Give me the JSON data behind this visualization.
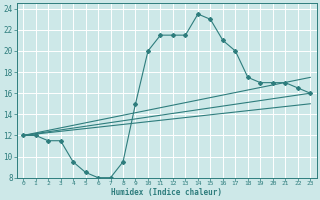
{
  "xlabel": "Humidex (Indice chaleur)",
  "background_color": "#cde8e8",
  "grid_color": "#b8d8d8",
  "line_color": "#2e7d7d",
  "xlim": [
    -0.5,
    23.5
  ],
  "ylim": [
    8,
    24.5
  ],
  "xticks": [
    0,
    1,
    2,
    3,
    4,
    5,
    6,
    7,
    8,
    9,
    10,
    11,
    12,
    13,
    14,
    15,
    16,
    17,
    18,
    19,
    20,
    21,
    22,
    23
  ],
  "yticks": [
    8,
    10,
    12,
    14,
    16,
    18,
    20,
    22,
    24
  ],
  "curve1_x": [
    0,
    1,
    2,
    3,
    4,
    5,
    6,
    7,
    8,
    9,
    10,
    11,
    12,
    13,
    14,
    15,
    16,
    17,
    18,
    19,
    20,
    21,
    22,
    23
  ],
  "curve1_y": [
    12,
    12,
    11.5,
    11.5,
    9.5,
    8.5,
    8,
    8,
    9.5,
    15,
    20,
    21.5,
    21.5,
    21.5,
    23.5,
    23,
    21,
    20,
    17.5,
    17,
    17,
    17,
    16.5,
    16
  ],
  "line1_x": [
    0,
    23
  ],
  "line1_y": [
    12,
    17.5
  ],
  "line2_x": [
    0,
    23
  ],
  "line2_y": [
    12,
    16.0
  ],
  "line3_x": [
    0,
    23
  ],
  "line3_y": [
    12,
    15.0
  ]
}
